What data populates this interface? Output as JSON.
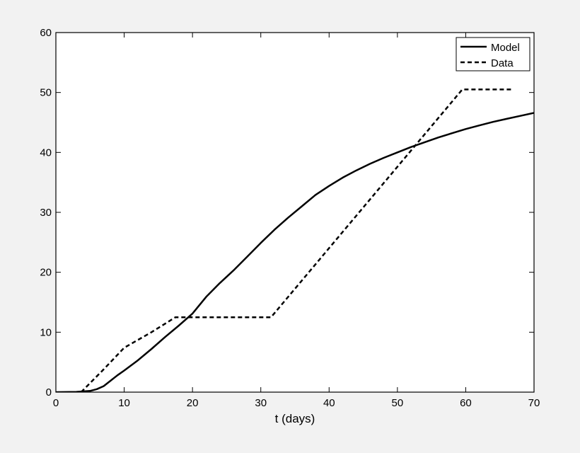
{
  "chart_data": {
    "type": "line",
    "xlabel": "t (days)",
    "ylabel": "",
    "xlim": [
      0,
      70
    ],
    "ylim": [
      0,
      60
    ],
    "xticks": [
      "0",
      "10",
      "20",
      "30",
      "40",
      "50",
      "60",
      "70"
    ],
    "yticks": [
      "0",
      "10",
      "20",
      "30",
      "40",
      "50",
      "60"
    ],
    "grid": false,
    "legend_position": "top-right",
    "series": [
      {
        "name": "Model",
        "style": "solid",
        "color": "#000000",
        "x": [
          0,
          3,
          5,
          6,
          7,
          8,
          9,
          10,
          12,
          14,
          16,
          18,
          20,
          22,
          24,
          26,
          28,
          30,
          32,
          34,
          36,
          38,
          40,
          42,
          44,
          46,
          48,
          50,
          52,
          54,
          56,
          58,
          60,
          62,
          64,
          66,
          68,
          70
        ],
        "y": [
          0,
          0.05,
          0.2,
          0.5,
          1.0,
          1.9,
          2.8,
          3.6,
          5.3,
          7.2,
          9.2,
          11.1,
          13.1,
          15.9,
          18.2,
          20.3,
          22.6,
          24.9,
          27.1,
          29.1,
          31.0,
          32.9,
          34.4,
          35.8,
          37.0,
          38.1,
          39.1,
          40.0,
          40.9,
          41.7,
          42.5,
          43.2,
          43.9,
          44.5,
          45.1,
          45.6,
          46.1,
          46.6
        ]
      },
      {
        "name": "Data",
        "style": "dashed",
        "color": "#000000",
        "x": [
          3.7,
          7,
          10,
          14,
          17.5,
          31.5,
          59.5,
          67
        ],
        "y": [
          0,
          3.8,
          7.4,
          10.0,
          12.5,
          12.5,
          50.5,
          50.5
        ]
      }
    ]
  }
}
